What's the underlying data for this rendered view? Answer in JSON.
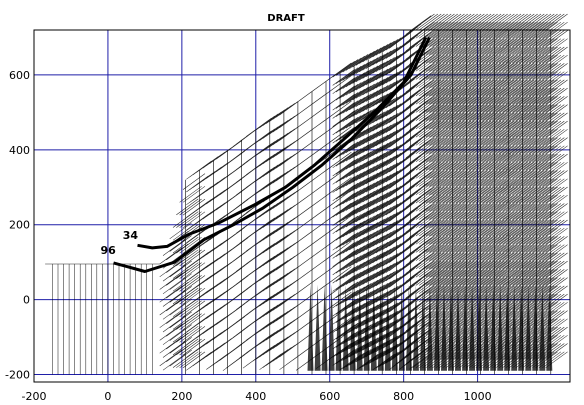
{
  "chart_data": {
    "type": "line",
    "title": "DRAFT",
    "xlabel": "",
    "ylabel": "",
    "xlim": [
      -200,
      1250
    ],
    "ylim": [
      -220,
      720
    ],
    "x_ticks": [
      -200,
      0,
      200,
      400,
      600,
      800,
      1000
    ],
    "y_ticks": [
      -200,
      0,
      200,
      400,
      600
    ],
    "grid": true,
    "grid_color": "#1f1fa8",
    "ink_color": "#000000",
    "annotations": [
      {
        "text": "34",
        "x": 40,
        "y": 162
      },
      {
        "text": "96",
        "x": -20,
        "y": 122
      }
    ],
    "series": [
      {
        "label_ref": "34",
        "x": [
          80,
          120,
          160,
          220,
          300,
          400,
          480,
          560,
          640,
          720,
          800,
          860
        ],
        "y": [
          145,
          138,
          142,
          175,
          205,
          255,
          300,
          360,
          430,
          500,
          580,
          700
        ]
      },
      {
        "label_ref": "96",
        "x": [
          15,
          100,
          180,
          260,
          340,
          420,
          500,
          580,
          660,
          740,
          820,
          870
        ],
        "y": [
          98,
          75,
          100,
          160,
          200,
          245,
          300,
          360,
          430,
          510,
          600,
          700
        ]
      }
    ]
  }
}
